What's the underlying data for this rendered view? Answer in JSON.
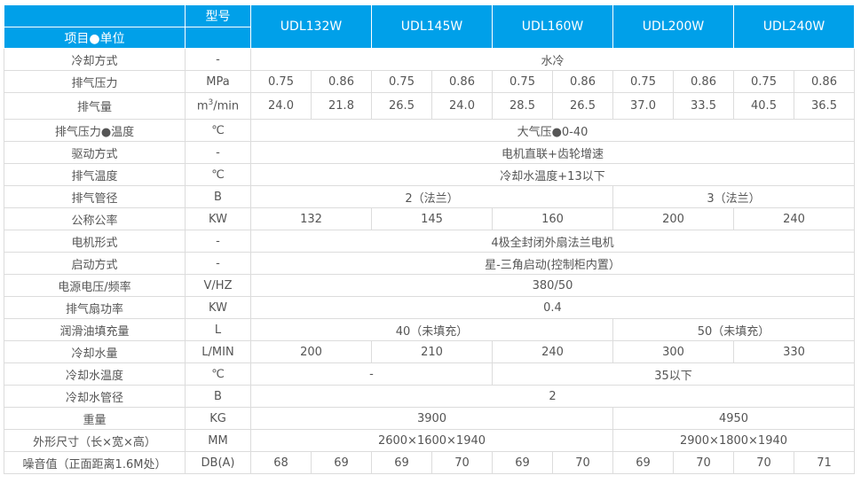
{
  "header": {
    "model_label": "型号",
    "item_unit_label": "项目●单位",
    "models": [
      "UDL132W",
      "UDL145W",
      "UDL160W",
      "UDL200W",
      "UDL240W"
    ]
  },
  "rows": [
    {
      "label": "冷却方式",
      "unit": "-",
      "cells": [
        {
          "t": "水冷",
          "s": 10
        }
      ]
    },
    {
      "label": "排气压力",
      "unit": "MPa",
      "cells": [
        {
          "t": "0.75",
          "s": 1
        },
        {
          "t": "0.86",
          "s": 1
        },
        {
          "t": "0.75",
          "s": 1
        },
        {
          "t": "0.86",
          "s": 1
        },
        {
          "t": "0.75",
          "s": 1
        },
        {
          "t": "0.86",
          "s": 1
        },
        {
          "t": "0.75",
          "s": 1
        },
        {
          "t": "0.86",
          "s": 1
        },
        {
          "t": "0.75",
          "s": 1
        },
        {
          "t": "0.86",
          "s": 1
        }
      ]
    },
    {
      "label": "排气量",
      "unit": "m3/min",
      "tall": true,
      "cells": [
        {
          "t": "24.0",
          "s": 1
        },
        {
          "t": "21.8",
          "s": 1
        },
        {
          "t": "26.5",
          "s": 1
        },
        {
          "t": "24.0",
          "s": 1
        },
        {
          "t": "28.5",
          "s": 1
        },
        {
          "t": "26.5",
          "s": 1
        },
        {
          "t": "37.0",
          "s": 1
        },
        {
          "t": "33.5",
          "s": 1
        },
        {
          "t": "40.5",
          "s": 1
        },
        {
          "t": "36.5",
          "s": 1
        }
      ]
    },
    {
      "label": "排气压力●温度",
      "unit": "℃",
      "cells": [
        {
          "t": "大气压●0-40",
          "s": 10
        }
      ]
    },
    {
      "label": "驱动方式",
      "unit": "-",
      "cells": [
        {
          "t": "电机直联+齿轮增速",
          "s": 10
        }
      ]
    },
    {
      "label": "排气温度",
      "unit": "℃",
      "cells": [
        {
          "t": "冷却水温度+13以下",
          "s": 10
        }
      ]
    },
    {
      "label": "排气管径",
      "unit": "B",
      "cells": [
        {
          "t": "2（法兰）",
          "s": 6
        },
        {
          "t": "3（法兰）",
          "s": 4
        }
      ]
    },
    {
      "label": "公称公率",
      "unit": "KW",
      "cells": [
        {
          "t": "132",
          "s": 2
        },
        {
          "t": "145",
          "s": 2
        },
        {
          "t": "160",
          "s": 2
        },
        {
          "t": "200",
          "s": 2
        },
        {
          "t": "240",
          "s": 2
        }
      ]
    },
    {
      "label": "电机形式",
      "unit": "-",
      "cells": [
        {
          "t": "4极全封闭外扇法兰电机",
          "s": 10
        }
      ]
    },
    {
      "label": "启动方式",
      "unit": "-",
      "cells": [
        {
          "t": "星-三角启动(控制柜内置）",
          "s": 10
        }
      ]
    },
    {
      "label": "电源电压/频率",
      "unit": "V/HZ",
      "cells": [
        {
          "t": "380/50",
          "s": 10
        }
      ]
    },
    {
      "label": "排气扇功率",
      "unit": "KW",
      "cells": [
        {
          "t": "0.4",
          "s": 10
        }
      ]
    },
    {
      "label": "润滑油填充量",
      "unit": "L",
      "cells": [
        {
          "t": "40（未填充）",
          "s": 6
        },
        {
          "t": "50（未填充）",
          "s": 4
        }
      ]
    },
    {
      "label": "冷却水量",
      "unit": "L/MIN",
      "cells": [
        {
          "t": "200",
          "s": 2
        },
        {
          "t": "210",
          "s": 2
        },
        {
          "t": "240",
          "s": 2
        },
        {
          "t": "300",
          "s": 2
        },
        {
          "t": "330",
          "s": 2
        }
      ]
    },
    {
      "label": "冷却水温度",
      "unit": "℃",
      "cells": [
        {
          "t": "-",
          "s": 4
        },
        {
          "t": "35以下",
          "s": 6
        }
      ]
    },
    {
      "label": "冷却水管径",
      "unit": "B",
      "cells": [
        {
          "t": "2",
          "s": 10
        }
      ]
    },
    {
      "label": "重量",
      "unit": "KG",
      "cells": [
        {
          "t": "3900",
          "s": 6
        },
        {
          "t": "4950",
          "s": 4
        }
      ]
    },
    {
      "label": "外形尺寸（长×宽×高）",
      "unit": "MM",
      "cells": [
        {
          "t": "2600×1600×1940",
          "s": 6
        },
        {
          "t": "2900×1800×1940",
          "s": 4
        }
      ]
    },
    {
      "label": "噪音值（正面距离1.6M处）",
      "unit": "DB(A)",
      "cells": [
        {
          "t": "68",
          "s": 1
        },
        {
          "t": "69",
          "s": 1
        },
        {
          "t": "69",
          "s": 1
        },
        {
          "t": "70",
          "s": 1
        },
        {
          "t": "69",
          "s": 1
        },
        {
          "t": "70",
          "s": 1
        },
        {
          "t": "69",
          "s": 1
        },
        {
          "t": "70",
          "s": 1
        },
        {
          "t": "70",
          "s": 1
        },
        {
          "t": "71",
          "s": 1
        }
      ]
    }
  ],
  "colors": {
    "header_bg": "#00a0e9",
    "text": "#555555",
    "border": "#dcdcdc"
  }
}
